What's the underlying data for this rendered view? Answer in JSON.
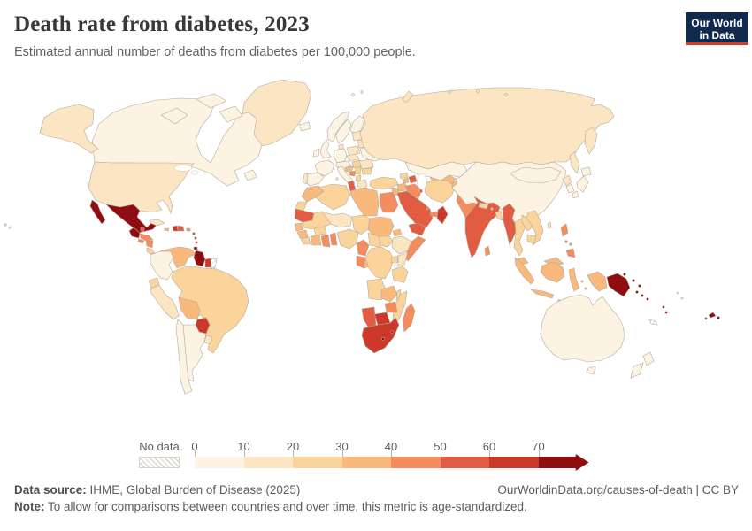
{
  "header": {
    "title": "Death rate from diabetes, 2023",
    "subtitle": "Estimated annual number of deaths from diabetes per 100,000 people."
  },
  "logo": {
    "line1": "Our World",
    "line2": "in Data",
    "bg_color": "#102a4e",
    "stripe_color": "#d73b2a"
  },
  "legend": {
    "no_data_label": "No data",
    "tick_labels": [
      "0",
      "10",
      "20",
      "30",
      "40",
      "50",
      "60",
      "70"
    ]
  },
  "footer": {
    "source_label": "Data source:",
    "source": " IHME, Global Burden of Disease (2025)",
    "right": "OurWorldinData.org/causes-of-death | CC BY",
    "note_label": "Note:",
    "note": " To allow for comparisons between countries and over time, this metric is age-standardized."
  },
  "chart_data": {
    "type": "choropleth_map",
    "title": "Death rate from diabetes, 2023",
    "unit": "deaths per 100,000 people",
    "year": 2023,
    "legend_position": "bottom",
    "bins": [
      "0-10",
      "10-20",
      "20-30",
      "30-40",
      "40-50",
      "50-60",
      "60-70",
      "70+"
    ],
    "palette": {
      "0-10": "#fdf3e2",
      "10-20": "#fbe5c2",
      "20-30": "#fbd49c",
      "30-40": "#f9b87c",
      "40-50": "#f58c5e",
      "50-60": "#e25c43",
      "60-70": "#cc392a",
      "70+": "#8f0c10"
    },
    "no_data_key": "no-data",
    "countries": {
      "canada": "0-10",
      "greenland": "10-20",
      "united-states": "10-20",
      "mexico": "70+",
      "guatemala": "70+",
      "belize": "50-60",
      "honduras": "40-50",
      "el-salvador": "40-50",
      "nicaragua": "40-50",
      "costa-rica": "20-30",
      "panama": "20-30",
      "cuba": "10-20",
      "jamaica": "30-40",
      "haiti": "60-70",
      "dominican-republic": "50-60",
      "puerto-rico": "40-50",
      "lesser-antilles": "60-70",
      "trinidad-and-tobago": "70+",
      "colombia": "0-10",
      "venezuela": "30-40",
      "guyana": "70+",
      "suriname": "60-70",
      "french-guiana": "no-data",
      "ecuador": "20-30",
      "peru": "10-20",
      "brazil": "20-30",
      "bolivia": "30-40",
      "paraguay": "60-70",
      "chile": "0-10",
      "argentina": "0-10",
      "uruguay": "10-20",
      "iceland": "0-10",
      "norway": "0-10",
      "sweden": "0-10",
      "finland": "0-10",
      "denmark": "10-20",
      "united-kingdom": "0-10",
      "ireland": "0-10",
      "france": "0-10",
      "spain": "0-10",
      "portugal": "10-20",
      "germany": "0-10",
      "poland": "10-20",
      "czechia": "10-20",
      "switzerland": "0-10",
      "italy": "0-10",
      "hungary": "20-30",
      "croatia": "30-40",
      "bosnia": "40-50",
      "serbia": "20-30",
      "albania": "20-30",
      "greece": "10-20",
      "romania": "10-20",
      "bulgaria": "20-30",
      "ukraine": "0-10",
      "belarus": "10-20",
      "baltic-states": "10-20",
      "russia": "10-20",
      "kazakhstan": "0-10",
      "uzbekistan": "30-40",
      "turkmenistan": "30-40",
      "kyrgyzstan": "20-30",
      "tajikistan": "30-40",
      "georgia": "20-30",
      "armenia": "30-40",
      "azerbaijan": "50-60",
      "turkey": "20-30",
      "syria": "30-40",
      "jordan": "30-40",
      "iraq": "40-50",
      "iran": "20-30",
      "saudi-arabia": "50-60",
      "kuwait": "50-60",
      "qatar": "40-50",
      "united-arab-emirates": "40-50",
      "oman": "60-70",
      "yemen": "50-60",
      "egypt": "40-50",
      "afghanistan": "30-40",
      "pakistan": "40-50",
      "india": "50-60",
      "nepal": "20-30",
      "bhutan": "20-30",
      "bangladesh": "20-30",
      "sri-lanka": "40-50",
      "myanmar": "50-60",
      "thailand": "20-30",
      "laos": "20-30",
      "vietnam": "20-30",
      "cambodia": "20-30",
      "china": "0-10",
      "mongolia": "0-10",
      "north-korea": "10-20",
      "south-korea": "0-10",
      "japan": "0-10",
      "taiwan": "10-20",
      "philippines": "40-50",
      "malaysia": "30-40",
      "indonesia": "30-40",
      "papua-new-guinea": "70+",
      "solomon-islands": "70+",
      "vanuatu": "70+",
      "fiji": "70+",
      "new-caledonia": "no-data",
      "pacific-islands": "no-data",
      "australia": "0-10",
      "new-zealand": "0-10",
      "morocco": "30-40",
      "western-sahara": "20-30",
      "algeria": "20-30",
      "tunisia": "50-60",
      "libya": "30-40",
      "mauritania": "50-60",
      "mali": "20-30",
      "senegal": "30-40",
      "guinea": "30-40",
      "sierra-leone": "20-30",
      "cote-divoire": "30-40",
      "burkina-faso": "20-30",
      "ghana": "40-50",
      "togo-benin": "40-50",
      "niger": "10-20",
      "nigeria": "20-30",
      "chad": "20-30",
      "sudan": "30-40",
      "eritrea": "30-40",
      "djibouti": "40-50",
      "ethiopia": "10-20",
      "somalia": "40-50",
      "cameroon": "40-50",
      "central-african-republic": "20-30",
      "south-sudan": "20-30",
      "gabon": "40-50",
      "republic-of-congo": "30-40",
      "democratic-republic-of-congo": "20-30",
      "uganda": "20-30",
      "kenya": "10-20",
      "tanzania": "20-30",
      "angola": "20-30",
      "zambia": "30-40",
      "malawi": "20-30",
      "mozambique": "20-30",
      "zimbabwe": "40-50",
      "botswana": "60-70",
      "namibia": "50-60",
      "south-africa": "60-70",
      "lesotho": "70+",
      "eswatini": "70+",
      "madagascar": "40-50"
    }
  }
}
